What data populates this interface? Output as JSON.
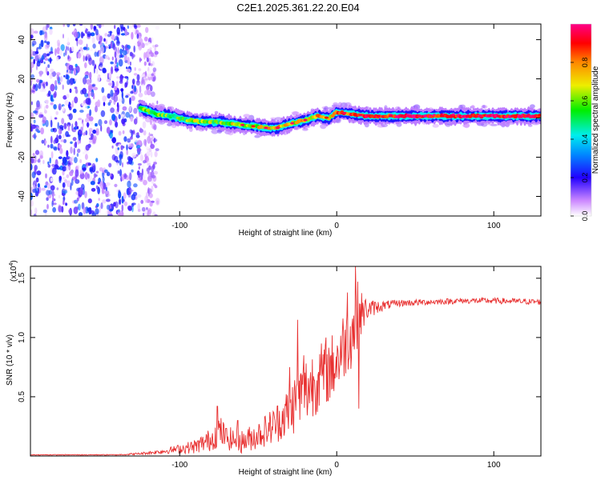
{
  "title": "C2E1.2025.361.22.20.E04",
  "chart_data": [
    {
      "type": "heatmap",
      "xlabel": "Height of straight line (km)",
      "ylabel": "Frequency (Hz)",
      "xlim": [
        -195,
        130
      ],
      "ylim": [
        -50,
        48
      ],
      "xticks": [
        -100,
        0,
        100
      ],
      "yticks": [
        -40,
        -20,
        0,
        20,
        40
      ],
      "colorbar": {
        "label": "Normalized spectral amplitude",
        "range": [
          0,
          1
        ],
        "ticks": [
          "0.0",
          "0.2",
          "0.4",
          "0.6",
          "0.8"
        ],
        "tick_values": [
          0,
          0.2,
          0.4,
          0.6,
          0.8
        ]
      },
      "noise_region_x": [
        -195,
        -118
      ],
      "ridge": {
        "x": [
          -125,
          -115,
          -105,
          -95,
          -85,
          -75,
          -65,
          -55,
          -45,
          -38,
          -30,
          -20,
          -12,
          -5,
          0,
          10,
          20,
          40,
          60,
          80,
          100,
          130
        ],
        "freq": [
          5,
          2,
          1,
          -1,
          -2,
          -2,
          -3,
          -4,
          -5,
          -5,
          -3,
          -1,
          1,
          0,
          3,
          2,
          1,
          1,
          1,
          1,
          1,
          1
        ],
        "amp": [
          0.6,
          0.55,
          0.55,
          0.6,
          0.6,
          0.6,
          0.65,
          0.65,
          0.7,
          0.75,
          0.7,
          0.7,
          0.75,
          0.7,
          0.8,
          0.85,
          0.9,
          0.92,
          0.95,
          0.95,
          0.95,
          0.95
        ]
      }
    },
    {
      "type": "line",
      "xlabel": "Height of straight line (km)",
      "ylabel": "SNR (10 * v/v)",
      "scale_label": "(x10",
      "scale_exp": "4",
      "scale_close": ")",
      "xlim": [
        -195,
        130
      ],
      "ylim": [
        0,
        1.6
      ],
      "xticks": [
        -100,
        0,
        100
      ],
      "yticks": [
        0.5,
        1.0,
        1.5
      ],
      "ytick_labels": [
        "0.5",
        "1.0",
        "1.5"
      ],
      "series": [
        {
          "name": "SNR",
          "color": "#e83030",
          "envelope_x": [
            -195,
            -140,
            -125,
            -110,
            -100,
            -90,
            -80,
            -75,
            -70,
            -60,
            -50,
            -40,
            -30,
            -25,
            -20,
            -15,
            -10,
            -5,
            0,
            5,
            10,
            13,
            15,
            20,
            30,
            40,
            60,
            80,
            100,
            130
          ],
          "envelope_base": [
            0.01,
            0.01,
            0.02,
            0.04,
            0.06,
            0.08,
            0.14,
            0.22,
            0.15,
            0.12,
            0.18,
            0.26,
            0.38,
            0.48,
            0.55,
            0.62,
            0.68,
            0.72,
            0.8,
            0.95,
            1.05,
            1.15,
            1.2,
            1.24,
            1.27,
            1.29,
            1.3,
            1.31,
            1.31,
            1.3
          ],
          "envelope_amp": [
            0.003,
            0.004,
            0.01,
            0.02,
            0.04,
            0.06,
            0.1,
            0.14,
            0.1,
            0.1,
            0.12,
            0.16,
            0.22,
            0.28,
            0.3,
            0.3,
            0.28,
            0.28,
            0.3,
            0.3,
            0.3,
            0.35,
            0.2,
            0.08,
            0.04,
            0.03,
            0.025,
            0.025,
            0.025,
            0.025
          ],
          "spikes": [
            [
              -76,
              0.42
            ],
            [
              -63,
              0.3
            ],
            [
              -30,
              0.75
            ],
            [
              -25,
              1.15
            ],
            [
              -21,
              0.85
            ],
            [
              -7,
              1.0
            ],
            [
              7,
              1.38
            ],
            [
              12,
              1.6
            ],
            [
              14,
              0.4
            ]
          ]
        }
      ]
    }
  ]
}
